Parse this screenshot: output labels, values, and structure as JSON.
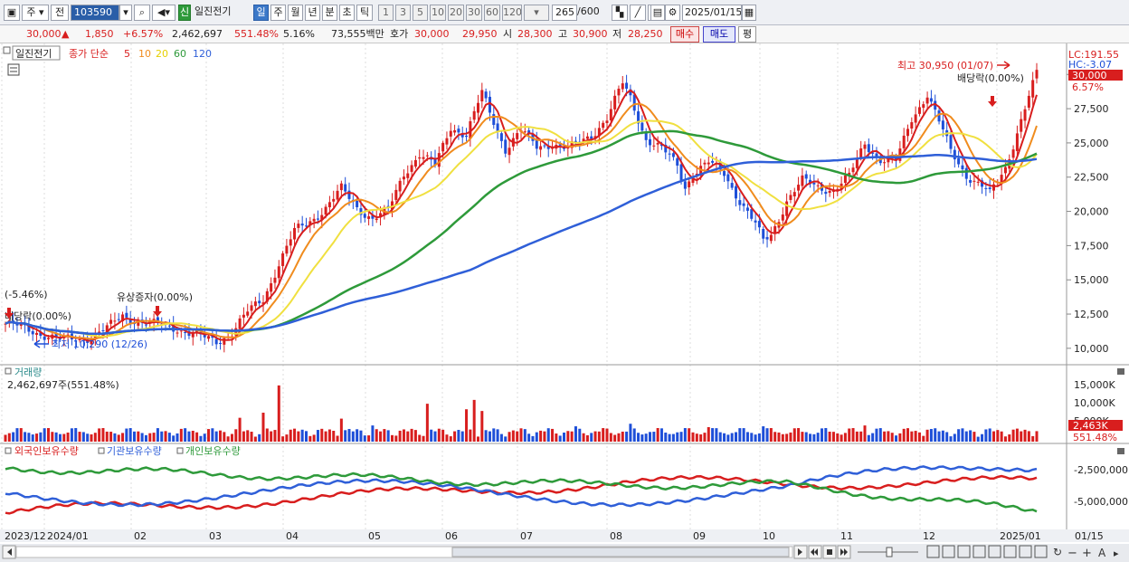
{
  "toolbar": {
    "type_label": "주",
    "mode_label": "전",
    "code_value": "103590",
    "credit_tag": "신",
    "stock_name": "일진전기",
    "periods": [
      "일",
      "주",
      "월",
      "년",
      "분",
      "초",
      "틱"
    ],
    "intervals": [
      "1",
      "3",
      "5",
      "10",
      "20",
      "30",
      "60",
      "120"
    ],
    "count_value": "265",
    "count_total": "/600",
    "date_value": "2025/01/15"
  },
  "quote": {
    "price": "30,000",
    "change_arrow": "▲",
    "change": "1,850",
    "change_rate": "+6.57%",
    "volume": "2,462,697",
    "volume_rate": "551.48%",
    "turnover_rate": "5.16%",
    "amount": "73,555백만",
    "bid_label": "호가",
    "ask": "30,000",
    "bid": "29,950",
    "open_label": "시",
    "open": "28,300",
    "high_label": "고",
    "high": "30,900",
    "low_label": "저",
    "low": "28,250",
    "buy_label": "매수",
    "sell_label": "매도",
    "eval_label": "평"
  },
  "price_panel": {
    "tag": "일진전기",
    "legend_prefix": "종가 단순",
    "ma_labels": [
      "5",
      "10",
      "20",
      "60",
      "120"
    ],
    "ma_colors": [
      "#d81e1e",
      "#f08c1e",
      "#f0e040",
      "#2e9a3a",
      "#2f5fd8"
    ],
    "lc_label": "LC:191.55",
    "hc_label": "HC:-3.07",
    "current_price_tag": "30,000",
    "current_rate_tag": "6.57%",
    "annotations": {
      "top_left_rate": "(-5.46%)",
      "dividend_left": "배당락(0.00%)",
      "rights_issue": "유상증자(0.00%)",
      "low_marker": "최저 10,290 (12/26)",
      "high_marker": "최고 30,950 (01/07)",
      "dividend_right": "배당락(0.00%)"
    },
    "y_ticks": [
      "30,000",
      "27,500",
      "25,000",
      "22,500",
      "20,000",
      "17,500",
      "15,000",
      "12,500",
      "10,000"
    ]
  },
  "volume_panel": {
    "title": "거래량",
    "value_label": "2,462,697주(551.48%)",
    "y_ticks": [
      "15,000K",
      "10,000K",
      "5,000K"
    ],
    "current_tag": "2,463K",
    "current_rate": "551.48%"
  },
  "holdings_panel": {
    "series_labels": [
      "외국인보유수량",
      "기관보유수량",
      "개인보유수량"
    ],
    "series_colors": [
      "#d81e1e",
      "#2f5fd8",
      "#2e9a3a"
    ],
    "y_ticks": [
      "-2,500,000",
      "-5,000,000"
    ]
  },
  "x_axis": {
    "labels": [
      "2023/12",
      "2024/01",
      "02",
      "03",
      "04",
      "05",
      "06",
      "07",
      "08",
      "09",
      "10",
      "11",
      "12",
      "2025/01"
    ],
    "right_label": "01/15"
  },
  "chart_data": {
    "type": "candlestick",
    "title": "일진전기",
    "ylim": [
      9000,
      32000
    ],
    "points": 265,
    "ma_windows": [
      5,
      10,
      20,
      60,
      120
    ]
  }
}
